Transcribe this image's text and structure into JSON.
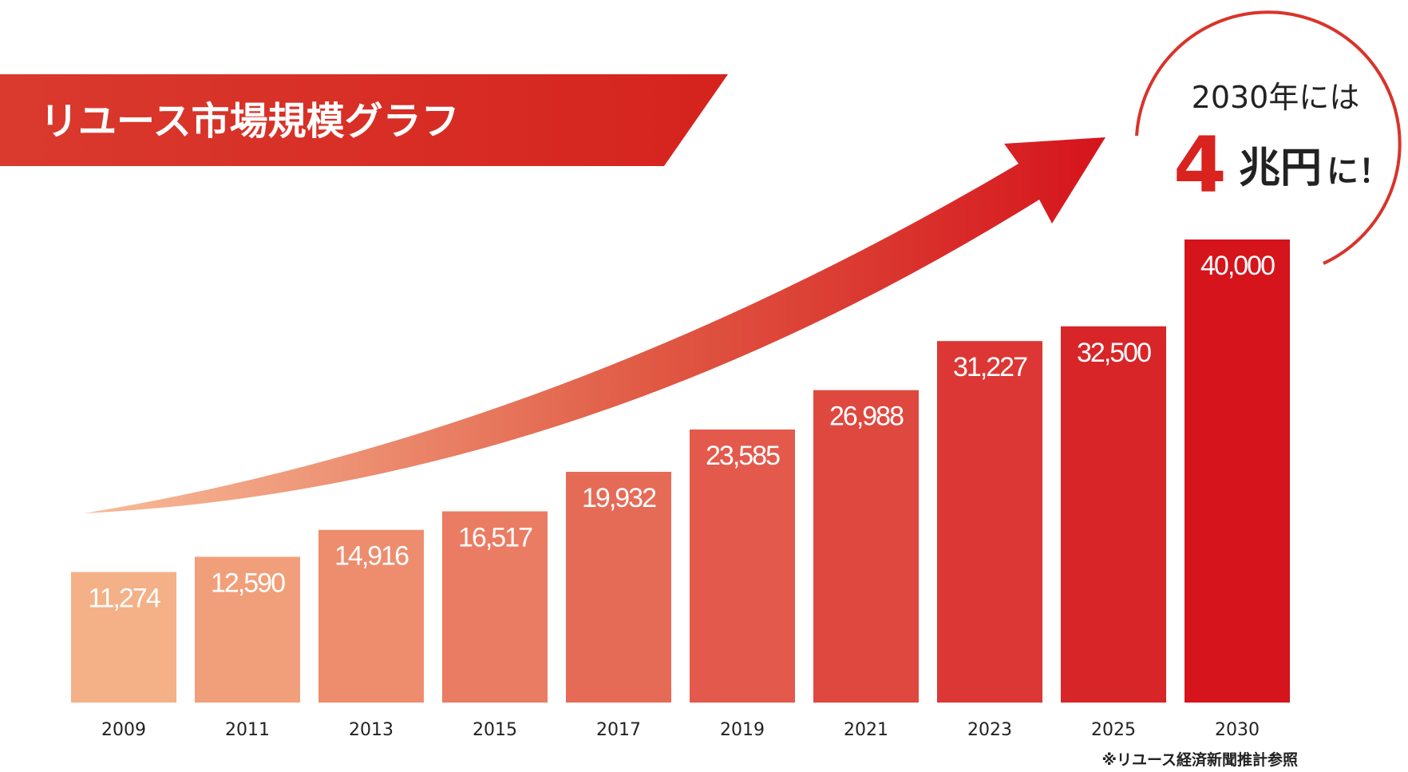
{
  "title": "リユース市場規模グラフ",
  "callout": {
    "line1": "2030年には",
    "number": "4",
    "unit": "兆円",
    "suffix": "に！"
  },
  "note": "※リユース経済新聞推計参照",
  "colors": {
    "start": "#f4b086",
    "end": "#d5141c",
    "title_band": "#d8342a",
    "circle_stroke": "#d8342a",
    "text": "#222222"
  },
  "chart_data": {
    "type": "bar",
    "title": "リユース市場規模グラフ",
    "categories": [
      "2009",
      "2011",
      "2013",
      "2015",
      "2017",
      "2019",
      "2021",
      "2023",
      "2025",
      "2030"
    ],
    "values": [
      11274,
      12590,
      14916,
      16517,
      19932,
      23585,
      26988,
      31227,
      32500,
      40000
    ],
    "value_labels": [
      "11,274",
      "12,590",
      "14,916",
      "16,517",
      "19,932",
      "23,585",
      "26,988",
      "31,227",
      "32,500",
      "40,000"
    ],
    "xlabel": "",
    "ylabel": "",
    "ylim": [
      0,
      40000
    ],
    "grid": false,
    "legend": "none"
  }
}
